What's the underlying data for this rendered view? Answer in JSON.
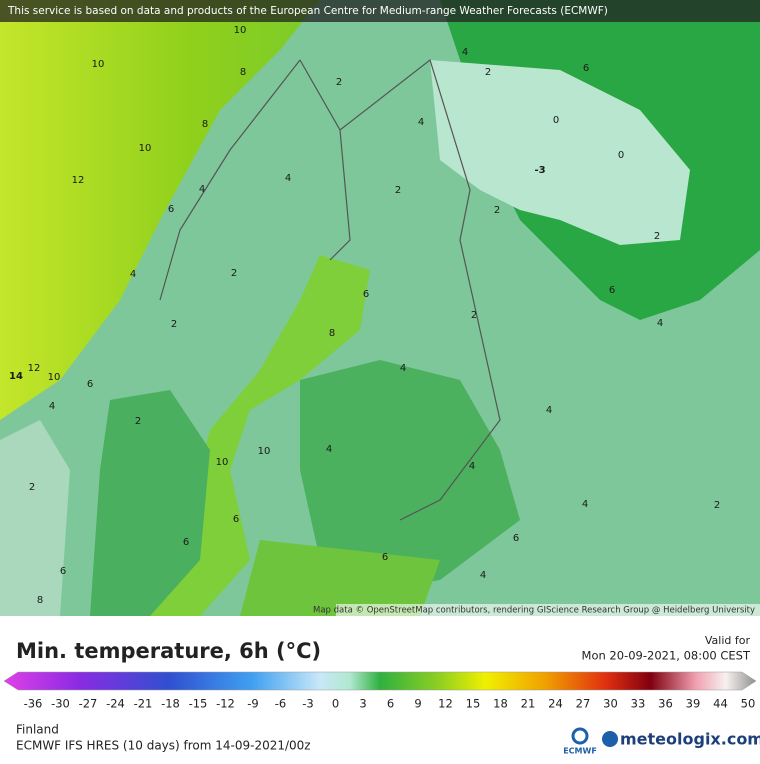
{
  "banner": "This service is based on data and products of the European Centre for Medium-range Weather Forecasts (ECMWF)",
  "attribution": "Map data © OpenStreetMap contributors, rendering GIScience Research Group @ Heidelberg University",
  "map": {
    "contour_labels": [
      "10",
      "10",
      "10",
      "12",
      "14",
      "12",
      "10",
      "8",
      "8",
      "6",
      "4",
      "4",
      "4",
      "2",
      "2",
      "2",
      "4",
      "2",
      "4",
      "2",
      "6",
      "0",
      "0",
      "-3",
      "2",
      "2",
      "6",
      "4",
      "8",
      "6",
      "2",
      "4",
      "4",
      "10",
      "10",
      "4",
      "4",
      "4",
      "2",
      "6",
      "6",
      "4",
      "6",
      "6",
      "8",
      "2",
      "2",
      "4",
      "6",
      "6"
    ]
  },
  "legend": {
    "title": "Min. temperature, 6h (°C)",
    "valid_label": "Valid for",
    "valid_time": "Mon 20-09-2021, 08:00 CEST",
    "ticks": [
      "-36",
      "-30",
      "-27",
      "-24",
      "-21",
      "-18",
      "-15",
      "-12",
      "-9",
      "-6",
      "-3",
      "0",
      "3",
      "6",
      "9",
      "12",
      "15",
      "18",
      "21",
      "24",
      "27",
      "30",
      "33",
      "36",
      "39",
      "44",
      "50"
    ]
  },
  "footer": {
    "region": "Finland",
    "model": "ECMWF IFS HRES (10 days) from 14-09-2021/00z",
    "ecmwf_logo": "ECMWF",
    "brand": "meteologix.com"
  }
}
